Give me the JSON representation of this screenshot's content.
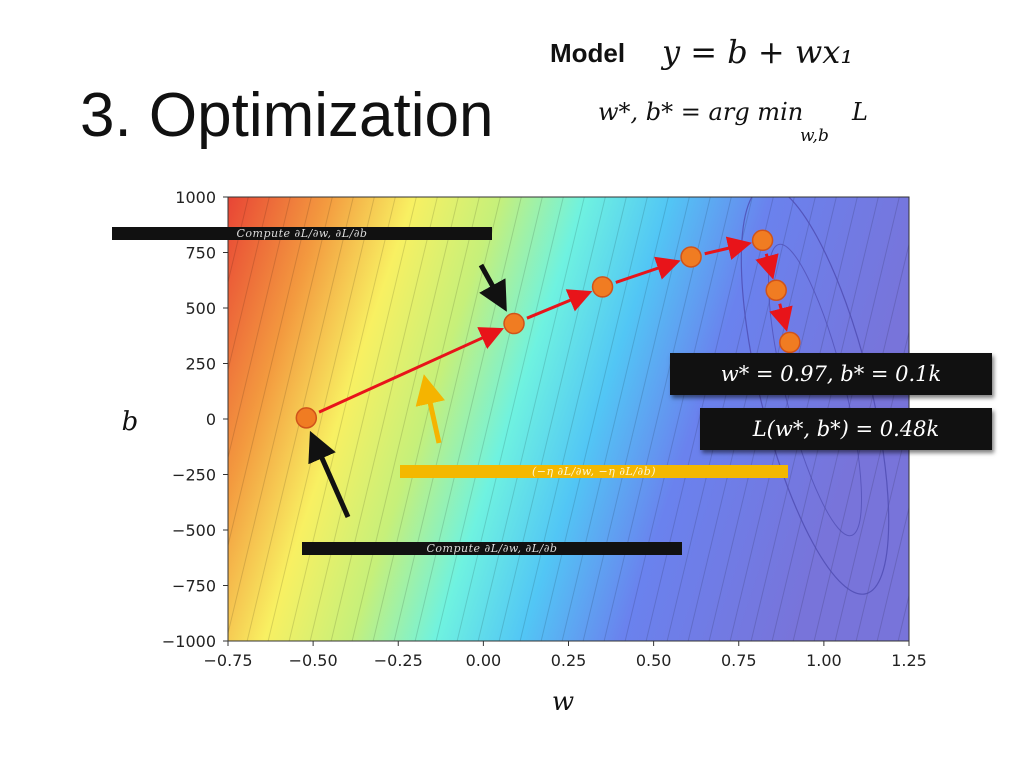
{
  "slide": {
    "title": "3. Optimization",
    "model_label": "Model",
    "model_equation": "y = b + wx₁",
    "argmin_lhs": "w*, b* = arg min",
    "argmin_sub": "w,b",
    "argmin_var": "L"
  },
  "annotations": {
    "compute_top": "Compute ∂L/∂w, ∂L/∂b",
    "compute_bottom": "Compute ∂L/∂w, ∂L/∂b",
    "update_step": "(−η ∂L/∂w, −η ∂L/∂b)",
    "result_params": "w* = 0.97, b* = 0.1k",
    "result_loss": "L(w*, b*) = 0.48k"
  },
  "colors": {
    "path_arrow": "#e8141a",
    "point": "#f07c22",
    "point_edge": "#d0531a",
    "pointer_black": "#111111",
    "pointer_orange": "#f5b400"
  },
  "chart_data": {
    "type": "line",
    "xlabel": "w",
    "ylabel": "b",
    "xlim": [
      -0.75,
      1.25
    ],
    "ylim": [
      -1000,
      1000
    ],
    "xticks": [
      "−0.75",
      "−0.50",
      "−0.25",
      "0.00",
      "0.25",
      "0.50",
      "0.75",
      "1.00",
      "1.25"
    ],
    "yticks": [
      "1000",
      "750",
      "500",
      "250",
      "0",
      "−250",
      "−500",
      "−750",
      "−1000"
    ],
    "grid": false,
    "background": "loss contour map (red = high loss, blue = low loss)",
    "series": [
      {
        "points": [
          {
            "w": -0.52,
            "b": 5
          },
          {
            "w": 0.09,
            "b": 430
          },
          {
            "w": 0.35,
            "b": 595
          },
          {
            "w": 0.61,
            "b": 730
          },
          {
            "w": 0.82,
            "b": 805
          },
          {
            "w": 0.86,
            "b": 580
          },
          {
            "w": 0.9,
            "b": 345
          }
        ]
      }
    ]
  }
}
